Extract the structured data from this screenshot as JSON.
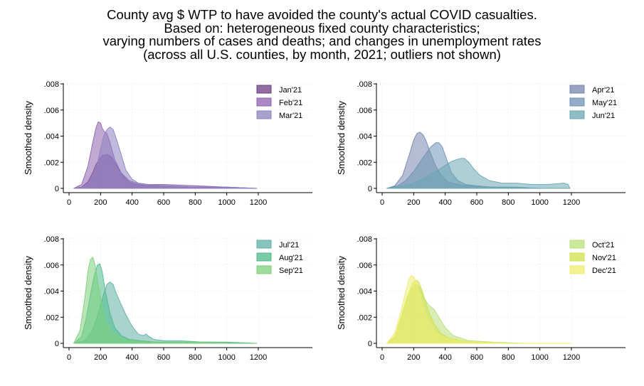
{
  "title_lines": [
    "County avg $ WTP to have avoided the county's actual COVID casualties.",
    "Based on: heterogeneous fixed county characteristics;",
    "varying numbers of cases and deaths; and changes in unemployment rates",
    "(across all U.S. counties, by month, 2021; outliers not shown)"
  ],
  "chart_data": [
    {
      "type": "area",
      "ylabel": "Smoothed density",
      "xlim": [
        0,
        1200
      ],
      "ylim": [
        0,
        0.008
      ],
      "xticks": [
        0,
        200,
        400,
        600,
        800,
        1000,
        1200
      ],
      "yticks": [
        0,
        0.002,
        0.004,
        0.006,
        0.008
      ],
      "ytick_labels": [
        "0",
        ".002",
        ".004",
        ".006",
        ".008"
      ],
      "grid": true,
      "legend": "top-right",
      "series": [
        {
          "name": "Jan'21",
          "color": "#6b3d83",
          "x": [
            30,
            80,
            120,
            150,
            170,
            190,
            210,
            240,
            270,
            300,
            340,
            380,
            420,
            500,
            600,
            800,
            1000,
            1190
          ],
          "y": [
            0,
            0.0001,
            0.0005,
            0.0012,
            0.0018,
            0.0022,
            0.0025,
            0.0026,
            0.0024,
            0.0018,
            0.001,
            0.0005,
            0.0003,
            0.0002,
            0.0002,
            0.0001,
            0.0001,
            0
          ]
        },
        {
          "name": "Feb'21",
          "color": "#8e62b0",
          "x": [
            30,
            80,
            120,
            150,
            170,
            185,
            200,
            210,
            220,
            240,
            260,
            290,
            330,
            380,
            430,
            500,
            600,
            800,
            1000,
            1190
          ],
          "y": [
            0,
            0.0003,
            0.0017,
            0.0035,
            0.0046,
            0.0051,
            0.005,
            0.0046,
            0.0044,
            0.0042,
            0.0035,
            0.0022,
            0.0012,
            0.0006,
            0.0004,
            0.0003,
            0.0003,
            0.0002,
            0.0001,
            0
          ]
        },
        {
          "name": "Mar'21",
          "color": "#8f82bf",
          "x": [
            30,
            100,
            150,
            180,
            200,
            220,
            240,
            260,
            280,
            300,
            330,
            360,
            400,
            440,
            500,
            600,
            800,
            1000,
            1190
          ],
          "y": [
            0,
            0.0001,
            0.0008,
            0.0019,
            0.003,
            0.004,
            0.0045,
            0.0047,
            0.0045,
            0.0038,
            0.0026,
            0.0014,
            0.0007,
            0.0004,
            0.0003,
            0.0002,
            0.0001,
            0.0001,
            0
          ]
        }
      ]
    },
    {
      "type": "area",
      "ylabel": "Smoothed density",
      "xlim": [
        0,
        1200
      ],
      "ylim": [
        0,
        0.008
      ],
      "xticks": [
        0,
        200,
        400,
        600,
        800,
        1000,
        1200
      ],
      "yticks": [
        0,
        0.002,
        0.004,
        0.006,
        0.008
      ],
      "ytick_labels": [
        "0",
        ".002",
        ".004",
        ".006",
        ".008"
      ],
      "grid": true,
      "legend": "top-right",
      "series": [
        {
          "name": "Apr'21",
          "color": "#7687ab",
          "x": [
            30,
            80,
            130,
            170,
            200,
            220,
            240,
            260,
            280,
            300,
            340,
            380,
            420,
            480,
            550,
            650,
            800,
            1000,
            1190
          ],
          "y": [
            0,
            0.0002,
            0.001,
            0.0025,
            0.0037,
            0.0042,
            0.0043,
            0.0041,
            0.0036,
            0.0029,
            0.0017,
            0.0009,
            0.0005,
            0.0003,
            0.0002,
            0.0001,
            0.0001,
            0,
            0
          ]
        },
        {
          "name": "May'21",
          "color": "#6d93b4",
          "x": [
            30,
            100,
            150,
            200,
            250,
            280,
            310,
            340,
            360,
            380,
            410,
            440,
            480,
            530,
            600,
            700,
            850,
            1000,
            1190
          ],
          "y": [
            0,
            0.0002,
            0.0006,
            0.0013,
            0.0022,
            0.0027,
            0.0032,
            0.0035,
            0.0035,
            0.0032,
            0.0022,
            0.0012,
            0.0006,
            0.0003,
            0.0002,
            0.0001,
            0.0001,
            0,
            0
          ]
        },
        {
          "name": "Jun'21",
          "color": "#6aa7b2",
          "x": [
            30,
            100,
            200,
            300,
            380,
            430,
            470,
            500,
            520,
            550,
            580,
            620,
            680,
            760,
            850,
            950,
            1050,
            1150,
            1180,
            1190
          ],
          "y": [
            0,
            0.0001,
            0.0004,
            0.001,
            0.0016,
            0.002,
            0.0022,
            0.0023,
            0.0023,
            0.002,
            0.0015,
            0.001,
            0.0006,
            0.0004,
            0.0004,
            0.0003,
            0.0003,
            0.0004,
            0.0003,
            0
          ]
        }
      ]
    },
    {
      "type": "area",
      "ylabel": "Smoothed density",
      "xlim": [
        0,
        1200
      ],
      "ylim": [
        0,
        0.008
      ],
      "xticks": [
        0,
        200,
        400,
        600,
        800,
        1000,
        1200
      ],
      "yticks": [
        0,
        0.002,
        0.004,
        0.006,
        0.008
      ],
      "ytick_labels": [
        "0",
        ".002",
        ".004",
        ".006",
        ".008"
      ],
      "grid": true,
      "legend": "top-right",
      "series": [
        {
          "name": "Jul'21",
          "color": "#5fb0a8",
          "x": [
            30,
            100,
            150,
            190,
            220,
            240,
            260,
            280,
            300,
            330,
            360,
            400,
            440,
            470,
            490,
            510,
            540,
            600,
            700,
            850,
            1000,
            1190
          ],
          "y": [
            0,
            0.0002,
            0.001,
            0.0025,
            0.0038,
            0.0045,
            0.0047,
            0.0045,
            0.0038,
            0.003,
            0.0022,
            0.0013,
            0.0007,
            0.0006,
            0.0007,
            0.0005,
            0.0003,
            0.0002,
            0.0002,
            0.0001,
            0.0001,
            0
          ]
        },
        {
          "name": "Aug'21",
          "color": "#4dbb8a",
          "x": [
            30,
            80,
            110,
            140,
            160,
            180,
            195,
            210,
            230,
            260,
            290,
            330,
            380,
            450,
            550,
            700,
            900,
            1190
          ],
          "y": [
            0,
            0.0005,
            0.002,
            0.004,
            0.0052,
            0.006,
            0.0061,
            0.0055,
            0.004,
            0.0023,
            0.0012,
            0.0006,
            0.0003,
            0.0002,
            0.0001,
            0.0001,
            0.0001,
            0
          ]
        },
        {
          "name": "Sep'21",
          "color": "#7cd07c",
          "x": [
            30,
            70,
            100,
            120,
            135,
            150,
            165,
            185,
            210,
            240,
            280,
            330,
            400,
            500,
            650,
            850,
            1100,
            1190
          ],
          "y": [
            0,
            0.001,
            0.0035,
            0.0055,
            0.0064,
            0.0066,
            0.006,
            0.0045,
            0.0027,
            0.0015,
            0.0008,
            0.0004,
            0.0002,
            0.0001,
            0.0001,
            0.0001,
            0,
            0
          ]
        }
      ]
    },
    {
      "type": "area",
      "ylabel": "Smoothed density",
      "xlim": [
        0,
        1200
      ],
      "ylim": [
        0,
        0.008
      ],
      "xticks": [
        0,
        200,
        400,
        600,
        800,
        1000,
        1200
      ],
      "yticks": [
        0,
        0.002,
        0.004,
        0.006,
        0.008
      ],
      "ytick_labels": [
        "0",
        ".002",
        ".004",
        ".006",
        ".008"
      ],
      "grid": true,
      "legend": "top-right",
      "series": [
        {
          "name": "Oct'21",
          "color": "#b9e07a",
          "x": [
            30,
            80,
            120,
            160,
            190,
            210,
            230,
            250,
            270,
            290,
            310,
            330,
            360,
            400,
            450,
            550,
            700,
            900,
            1190
          ],
          "y": [
            0,
            0.0005,
            0.0018,
            0.0034,
            0.0042,
            0.0045,
            0.0044,
            0.004,
            0.0034,
            0.003,
            0.0028,
            0.0026,
            0.002,
            0.0012,
            0.0006,
            0.0002,
            0.0001,
            0,
            0
          ]
        },
        {
          "name": "Nov'21",
          "color": "#d0e24a",
          "x": [
            30,
            80,
            120,
            160,
            190,
            210,
            225,
            240,
            260,
            280,
            300,
            330,
            370,
            420,
            500,
            600,
            800,
            1190
          ],
          "y": [
            0,
            0.0005,
            0.002,
            0.0036,
            0.0045,
            0.0048,
            0.0048,
            0.0045,
            0.0038,
            0.003,
            0.0023,
            0.0015,
            0.0008,
            0.0004,
            0.0002,
            0.0001,
            0,
            0
          ]
        },
        {
          "name": "Dec'21",
          "color": "#f0ec6e",
          "x": [
            30,
            80,
            120,
            150,
            170,
            185,
            200,
            215,
            230,
            250,
            270,
            300,
            340,
            400,
            480,
            600,
            800,
            1190
          ],
          "y": [
            0,
            0.0008,
            0.0025,
            0.004,
            0.0049,
            0.0052,
            0.0051,
            0.0047,
            0.0041,
            0.0033,
            0.0025,
            0.0016,
            0.0008,
            0.0004,
            0.0002,
            0.0001,
            0,
            0
          ]
        }
      ]
    }
  ]
}
